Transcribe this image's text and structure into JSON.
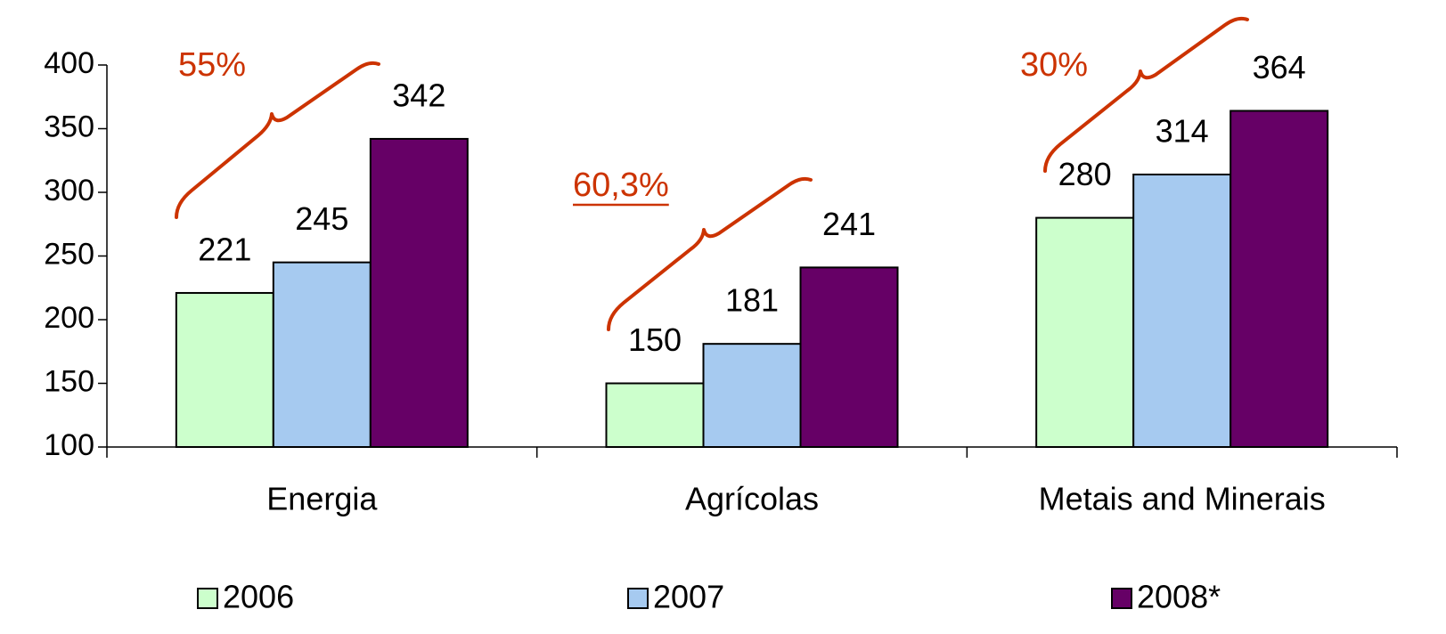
{
  "chart_data": {
    "type": "bar",
    "categories": [
      "Energia",
      "Agrícolas",
      "Metais and Minerais"
    ],
    "series": [
      {
        "name": "2006",
        "color": "#ccffcc",
        "values": [
          221,
          150,
          280
        ]
      },
      {
        "name": "2007",
        "color": "#a6caf0",
        "values": [
          245,
          181,
          314
        ]
      },
      {
        "name": "2008*",
        "color": "#660066",
        "values": [
          342,
          241,
          364
        ]
      }
    ],
    "ylim": [
      100,
      400
    ],
    "yticks": [
      100,
      150,
      200,
      250,
      300,
      350,
      400
    ],
    "annotations": [
      {
        "text": "55%",
        "underline": false
      },
      {
        "text": "60,3%",
        "underline": true
      },
      {
        "text": "30%",
        "underline": false
      }
    ]
  }
}
